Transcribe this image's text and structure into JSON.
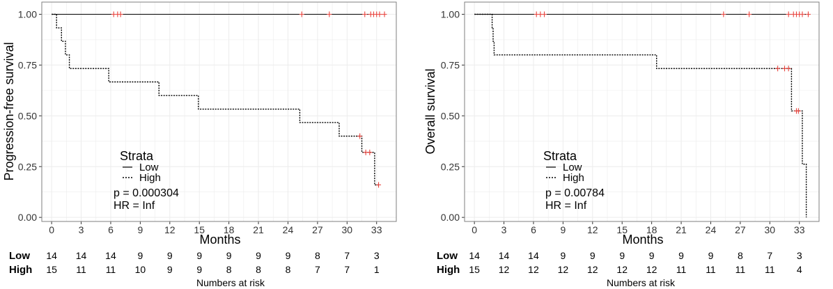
{
  "chart_data": [
    {
      "type": "line",
      "subtype": "kaplan-meier",
      "ylabel": "Progression-free survival",
      "xlabel": "Months",
      "xlim": [
        -1,
        35
      ],
      "ylim": [
        -0.02,
        1.06
      ],
      "x_ticks": [
        0,
        3,
        6,
        9,
        12,
        15,
        18,
        21,
        24,
        27,
        30,
        33
      ],
      "y_ticks": [
        0,
        0.25,
        0.5,
        0.75,
        1
      ],
      "y_tick_labels": [
        "0.00",
        "0.25",
        "0.50",
        "0.75",
        "1.00"
      ],
      "series": [
        {
          "name": "Low",
          "style": "solid",
          "steps": [
            [
              0,
              1.0
            ],
            [
              33.9,
              1.0
            ]
          ],
          "censored": [
            [
              6.3,
              1.0
            ],
            [
              6.7,
              1.0
            ],
            [
              7.0,
              1.0
            ],
            [
              25.4,
              1.0
            ],
            [
              28.2,
              1.0
            ],
            [
              31.8,
              1.0
            ],
            [
              32.4,
              1.0
            ],
            [
              32.7,
              1.0
            ],
            [
              33.0,
              1.0
            ],
            [
              33.3,
              1.0
            ],
            [
              33.8,
              1.0
            ]
          ]
        },
        {
          "name": "High",
          "style": "dotted",
          "steps": [
            [
              0,
              1.0
            ],
            [
              0.5,
              0.933
            ],
            [
              1.0,
              0.867
            ],
            [
              1.4,
              0.8
            ],
            [
              1.8,
              0.733
            ],
            [
              5.8,
              0.667
            ],
            [
              10.9,
              0.6
            ],
            [
              14.9,
              0.533
            ],
            [
              25.2,
              0.467
            ],
            [
              29.2,
              0.4
            ],
            [
              31.5,
              0.32
            ],
            [
              32.8,
              0.16
            ],
            [
              33.3,
              0.16
            ]
          ],
          "censored": [
            [
              31.3,
              0.4
            ],
            [
              31.9,
              0.32
            ],
            [
              32.3,
              0.32
            ],
            [
              33.2,
              0.16
            ]
          ]
        }
      ],
      "legend": {
        "title": "Strata",
        "entries": [
          "Low",
          "High"
        ],
        "placement": "bottom-left"
      },
      "annotation": {
        "p": "p = 0.000304",
        "hr": "HR = Inf"
      },
      "risk_table": {
        "title": "Numbers at risk",
        "time_points": [
          0,
          3,
          6,
          9,
          12,
          15,
          18,
          21,
          24,
          27,
          30,
          33
        ],
        "rows": [
          {
            "label": "Low",
            "values": [
              "14",
              "14",
              "14",
              "9",
              "9",
              "9",
              "9",
              "9",
              "9",
              "8",
              "7",
              "3"
            ]
          },
          {
            "label": "High",
            "values": [
              "15",
              "11",
              "11",
              "10",
              "9",
              "9",
              "8",
              "8",
              "8",
              "7",
              "7",
              "1"
            ]
          }
        ]
      }
    },
    {
      "type": "line",
      "subtype": "kaplan-meier",
      "ylabel": "Overall survival",
      "xlabel": "Months",
      "xlim": [
        -1,
        35
      ],
      "ylim": [
        -0.02,
        1.06
      ],
      "x_ticks": [
        0,
        3,
        6,
        9,
        12,
        15,
        18,
        21,
        24,
        27,
        30,
        33
      ],
      "y_ticks": [
        0,
        0.25,
        0.5,
        0.75,
        1
      ],
      "y_tick_labels": [
        "0.00",
        "0.25",
        "0.50",
        "0.75",
        "1.00"
      ],
      "series": [
        {
          "name": "Low",
          "style": "solid",
          "steps": [
            [
              0,
              1.0
            ],
            [
              34.0,
              1.0
            ]
          ],
          "censored": [
            [
              6.3,
              1.0
            ],
            [
              6.7,
              1.0
            ],
            [
              7.1,
              1.0
            ],
            [
              25.3,
              1.0
            ],
            [
              27.9,
              1.0
            ],
            [
              31.9,
              1.0
            ],
            [
              32.4,
              1.0
            ],
            [
              32.7,
              1.0
            ],
            [
              33.0,
              1.0
            ],
            [
              33.3,
              1.0
            ],
            [
              33.9,
              1.0
            ]
          ]
        },
        {
          "name": "High",
          "style": "dotted",
          "steps": [
            [
              0,
              1.0
            ],
            [
              1.8,
              0.933
            ],
            [
              1.9,
              0.867
            ],
            [
              2.0,
              0.8
            ],
            [
              18.5,
              0.733
            ],
            [
              32.2,
              0.524
            ],
            [
              33.3,
              0.262
            ],
            [
              33.7,
              0.0
            ]
          ],
          "censored": [
            [
              30.8,
              0.733
            ],
            [
              31.5,
              0.733
            ],
            [
              31.9,
              0.733
            ],
            [
              32.7,
              0.524
            ],
            [
              32.9,
              0.524
            ]
          ]
        }
      ],
      "legend": {
        "title": "Strata",
        "entries": [
          "Low",
          "High"
        ],
        "placement": "bottom-left"
      },
      "annotation": {
        "p": "p = 0.00784",
        "hr": "HR = Inf"
      },
      "risk_table": {
        "title": "Numbers at risk",
        "time_points": [
          0,
          3,
          6,
          9,
          12,
          15,
          18,
          21,
          24,
          27,
          30,
          33
        ],
        "rows": [
          {
            "label": "Low",
            "values": [
              "14",
              "14",
              "14",
              "9",
              "9",
              "9",
              "9",
              "9",
              "9",
              "8",
              "7",
              "3"
            ]
          },
          {
            "label": "High",
            "values": [
              "15",
              "12",
              "12",
              "12",
              "12",
              "12",
              "12",
              "11",
              "11",
              "11",
              "11",
              "4"
            ]
          }
        ]
      }
    }
  ],
  "colors": {
    "panel_border": "#7f7f7f",
    "grid": "#ececec",
    "censor": "#e8413b",
    "line": "#000000"
  }
}
